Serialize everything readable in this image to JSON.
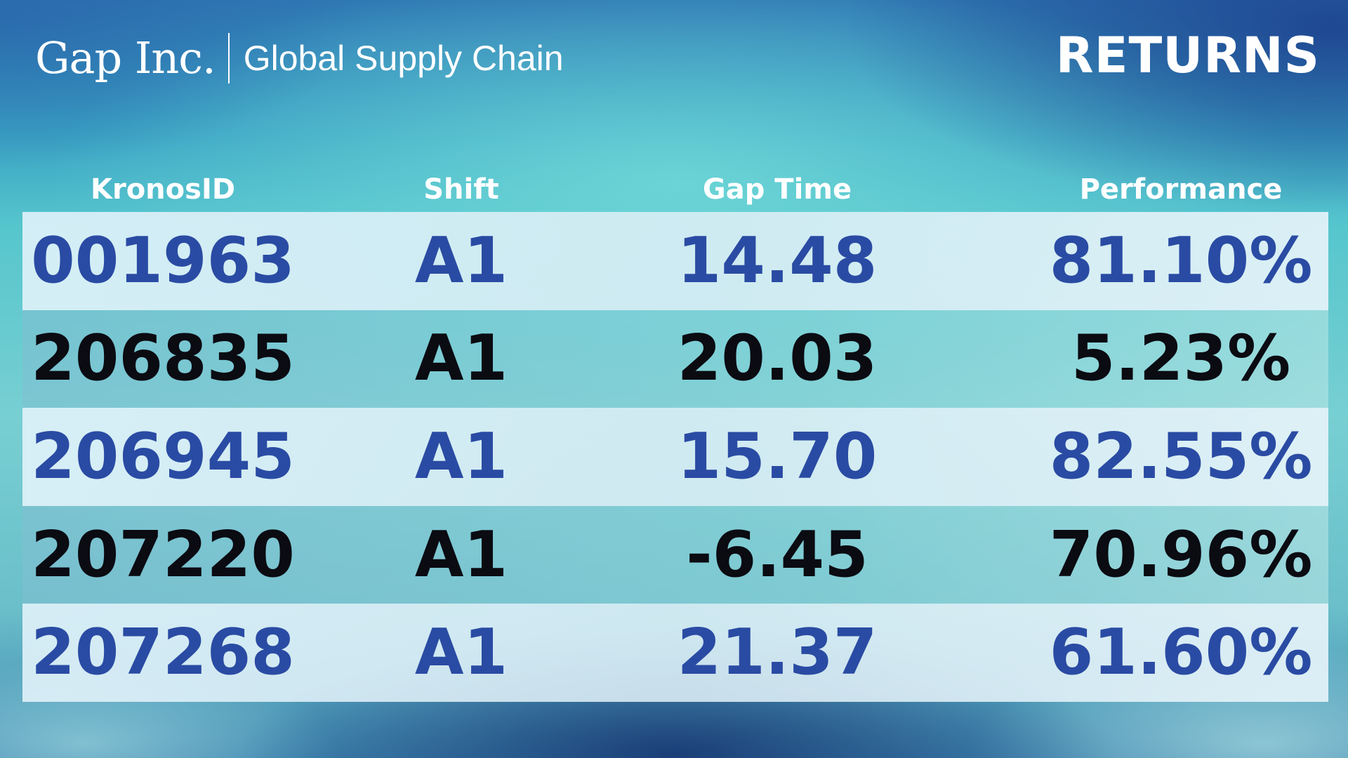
{
  "brand": {
    "logo": "Gap Inc.",
    "subtitle": "Global Supply Chain"
  },
  "page_title": "RETURNS",
  "columns": [
    "KronosID",
    "Shift",
    "Gap Time",
    "Performance"
  ],
  "rows": [
    {
      "kronos_id": "001963",
      "shift": "A1",
      "gap_time": "14.48",
      "performance": "81.10%"
    },
    {
      "kronos_id": "206835",
      "shift": "A1",
      "gap_time": "20.03",
      "performance": "5.23%"
    },
    {
      "kronos_id": "206945",
      "shift": "A1",
      "gap_time": "15.70",
      "performance": "82.55%"
    },
    {
      "kronos_id": "207220",
      "shift": "A1",
      "gap_time": "-6.45",
      "performance": "70.96%"
    },
    {
      "kronos_id": "207268",
      "shift": "A1",
      "gap_time": "21.37",
      "performance": "61.60%"
    }
  ],
  "colors": {
    "highlight_text": "#2a4ba3",
    "normal_text": "#0b0b12",
    "header_text": "#ffffff"
  }
}
